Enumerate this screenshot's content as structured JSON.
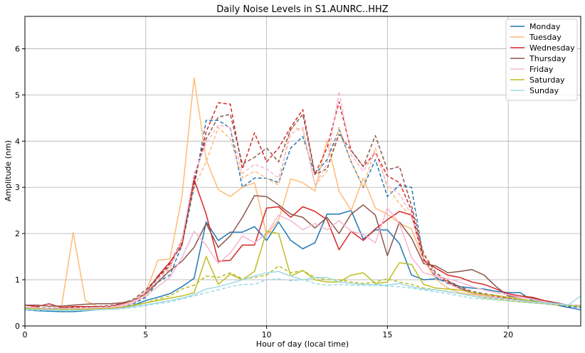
{
  "chart_data": {
    "type": "line",
    "title": "Daily Noise Levels in S1.AUNRC..HHZ",
    "xlabel": "Hour of day (local time)",
    "ylabel": "Amplitude (nm)",
    "xlim": [
      0,
      23
    ],
    "ylim": [
      0,
      6.7
    ],
    "xticks": [
      0,
      5,
      10,
      15,
      20
    ],
    "yticks": [
      0,
      1,
      2,
      3,
      4,
      5,
      6
    ],
    "grid": true,
    "legend_position": "top-right",
    "x": [
      0,
      0.5,
      1,
      1.5,
      2,
      2.5,
      3,
      3.5,
      4,
      4.5,
      5,
      5.5,
      6,
      6.5,
      7,
      7.5,
      8,
      8.5,
      9,
      9.5,
      10,
      10.5,
      11,
      11.5,
      12,
      12.5,
      13,
      13.5,
      14,
      14.5,
      15,
      15.5,
      16,
      16.5,
      17,
      17.5,
      18,
      18.5,
      19,
      19.5,
      20,
      20.5,
      21,
      21.5,
      22,
      22.5,
      23
    ],
    "series": [
      {
        "name": "Monday",
        "color": "#1f77b4",
        "style": "solid",
        "values": [
          0.35,
          0.33,
          0.32,
          0.31,
          0.31,
          0.33,
          0.35,
          0.37,
          0.4,
          0.45,
          0.55,
          0.62,
          0.7,
          0.85,
          1.03,
          2.25,
          1.85,
          2.03,
          2.03,
          2.15,
          1.85,
          2.25,
          1.85,
          1.67,
          1.8,
          2.42,
          2.42,
          2.5,
          1.88,
          2.08,
          2.08,
          1.78,
          1.1,
          1.0,
          1.02,
          0.96,
          0.85,
          0.82,
          0.8,
          0.75,
          0.72,
          0.72,
          0.55,
          0.5,
          0.45,
          0.4,
          0.35
        ]
      },
      {
        "name": "Monday (dashed)",
        "color": "#1f77b4",
        "style": "dashed",
        "legend": false,
        "values": [
          0.38,
          0.37,
          0.36,
          0.36,
          0.36,
          0.37,
          0.38,
          0.39,
          0.42,
          0.48,
          0.62,
          0.95,
          1.1,
          1.75,
          3.0,
          4.45,
          4.45,
          4.28,
          3.0,
          3.2,
          3.2,
          3.1,
          3.85,
          4.1,
          3.28,
          3.6,
          4.25,
          3.55,
          3.0,
          3.6,
          2.8,
          3.05,
          3.0,
          1.42,
          1.05,
          0.92,
          0.82,
          0.72,
          0.65,
          0.62,
          0.58,
          0.55,
          0.52,
          0.48,
          0.45,
          0.42,
          0.4
        ]
      },
      {
        "name": "Tuesday",
        "color": "#ffbb78",
        "style": "solid",
        "values": [
          0.4,
          0.38,
          0.37,
          0.37,
          2.02,
          0.55,
          0.42,
          0.42,
          0.45,
          0.55,
          0.72,
          1.42,
          1.45,
          2.8,
          5.37,
          3.6,
          2.95,
          2.8,
          3.0,
          3.1,
          1.97,
          2.3,
          3.18,
          3.1,
          2.92,
          4.02,
          2.92,
          2.5,
          3.2,
          2.55,
          2.42,
          2.22,
          2.1,
          1.42,
          1.02,
          0.82,
          0.72,
          0.68,
          0.65,
          0.6,
          0.58,
          0.55,
          0.5,
          0.48,
          0.45,
          0.45,
          0.45
        ]
      },
      {
        "name": "Tuesday (dashed)",
        "color": "#ffbb78",
        "style": "dashed",
        "legend": false,
        "values": [
          0.4,
          0.38,
          0.38,
          0.38,
          0.38,
          0.39,
          0.4,
          0.42,
          0.45,
          0.52,
          0.68,
          0.95,
          1.25,
          1.9,
          3.0,
          3.55,
          4.3,
          4.05,
          3.2,
          3.35,
          3.2,
          3.05,
          4.3,
          4.25,
          3.05,
          3.35,
          4.3,
          3.55,
          3.0,
          3.85,
          3.0,
          2.65,
          2.35,
          1.6,
          1.15,
          0.95,
          0.8,
          0.7,
          0.65,
          0.62,
          0.6,
          0.55,
          0.52,
          0.5,
          0.47,
          0.45,
          0.43
        ]
      },
      {
        "name": "Wednesday",
        "color": "#d62728",
        "style": "solid",
        "values": [
          0.45,
          0.42,
          0.48,
          0.4,
          0.42,
          0.42,
          0.42,
          0.42,
          0.48,
          0.55,
          0.72,
          1.08,
          1.38,
          1.75,
          3.17,
          2.42,
          1.4,
          1.42,
          1.75,
          1.75,
          2.55,
          2.58,
          2.35,
          2.58,
          2.48,
          2.3,
          1.65,
          2.05,
          1.85,
          2.1,
          2.3,
          2.48,
          2.4,
          1.42,
          1.25,
          1.1,
          1.05,
          0.95,
          0.9,
          0.8,
          0.7,
          0.65,
          0.62,
          0.55,
          0.5,
          0.45,
          0.43
        ]
      },
      {
        "name": "Wednesday (dashed)",
        "color": "#d62728",
        "style": "dashed",
        "legend": false,
        "values": [
          0.4,
          0.39,
          0.38,
          0.38,
          0.38,
          0.39,
          0.4,
          0.42,
          0.45,
          0.55,
          0.72,
          1.05,
          1.35,
          1.85,
          3.1,
          4.2,
          4.83,
          4.8,
          3.4,
          4.18,
          3.55,
          3.85,
          4.3,
          4.68,
          3.28,
          3.85,
          4.85,
          3.8,
          3.45,
          3.75,
          3.25,
          3.1,
          2.5,
          1.45,
          1.1,
          0.95,
          0.82,
          0.72,
          0.68,
          0.64,
          0.6,
          0.57,
          0.52,
          0.48,
          0.46,
          0.44,
          0.42
        ]
      },
      {
        "name": "Thursday",
        "color": "#8c564b",
        "style": "solid",
        "values": [
          0.45,
          0.45,
          0.43,
          0.43,
          0.45,
          0.47,
          0.48,
          0.48,
          0.5,
          0.55,
          0.7,
          0.95,
          1.2,
          1.4,
          1.7,
          2.22,
          1.7,
          1.95,
          2.35,
          2.82,
          2.8,
          2.62,
          2.42,
          2.35,
          2.12,
          2.35,
          2.0,
          2.42,
          2.62,
          2.4,
          1.52,
          2.25,
          1.9,
          1.35,
          1.3,
          1.15,
          1.18,
          1.22,
          1.1,
          0.85,
          0.65,
          0.62,
          0.6,
          0.52,
          0.5,
          0.45,
          0.43
        ]
      },
      {
        "name": "Thursday (dashed)",
        "color": "#8c564b",
        "style": "dashed",
        "legend": false,
        "values": [
          0.4,
          0.4,
          0.39,
          0.39,
          0.4,
          0.4,
          0.42,
          0.44,
          0.48,
          0.58,
          0.78,
          1.05,
          1.3,
          1.8,
          3.2,
          4.05,
          4.52,
          4.58,
          3.5,
          3.65,
          3.85,
          3.55,
          4.25,
          4.58,
          3.28,
          3.4,
          4.15,
          3.8,
          3.45,
          4.12,
          3.38,
          3.45,
          2.6,
          1.55,
          1.15,
          0.98,
          0.85,
          0.75,
          0.7,
          0.66,
          0.62,
          0.58,
          0.54,
          0.5,
          0.47,
          0.44,
          0.42
        ]
      },
      {
        "name": "Friday",
        "color": "#f7b6d2",
        "style": "solid",
        "values": [
          0.4,
          0.39,
          0.38,
          0.38,
          0.38,
          0.38,
          0.39,
          0.4,
          0.42,
          0.5,
          0.65,
          0.85,
          1.05,
          1.48,
          2.05,
          1.75,
          1.35,
          1.58,
          1.95,
          1.8,
          2.0,
          2.4,
          2.28,
          2.08,
          2.22,
          2.08,
          2.28,
          2.05,
          1.98,
          1.8,
          2.55,
          2.22,
          1.48,
          1.15,
          1.08,
          1.02,
          0.95,
          0.85,
          0.78,
          0.72,
          0.68,
          0.62,
          0.58,
          0.52,
          0.48,
          0.45,
          0.43
        ]
      },
      {
        "name": "Friday (dashed)",
        "color": "#f7b6d2",
        "style": "dashed",
        "legend": false,
        "values": [
          0.4,
          0.39,
          0.38,
          0.38,
          0.38,
          0.39,
          0.4,
          0.42,
          0.45,
          0.55,
          0.72,
          1.0,
          1.28,
          1.85,
          3.3,
          3.95,
          4.35,
          4.3,
          3.3,
          3.5,
          3.4,
          3.2,
          4.15,
          4.3,
          3.05,
          3.5,
          5.08,
          3.7,
          3.35,
          3.75,
          3.05,
          2.85,
          2.4,
          1.4,
          1.1,
          0.92,
          0.8,
          0.7,
          0.66,
          0.62,
          0.58,
          0.55,
          0.52,
          0.48,
          0.46,
          0.44,
          0.42
        ]
      },
      {
        "name": "Saturday",
        "color": "#bcbd22",
        "style": "solid",
        "values": [
          0.38,
          0.37,
          0.36,
          0.36,
          0.36,
          0.36,
          0.37,
          0.38,
          0.4,
          0.45,
          0.5,
          0.55,
          0.6,
          0.65,
          0.72,
          1.5,
          0.9,
          1.12,
          1.0,
          1.18,
          2.05,
          2.0,
          1.08,
          1.2,
          1.0,
          0.95,
          0.95,
          1.1,
          1.15,
          0.92,
          0.95,
          1.37,
          1.33,
          0.9,
          0.82,
          0.8,
          0.78,
          0.72,
          0.68,
          0.66,
          0.62,
          0.58,
          0.54,
          0.5,
          0.47,
          0.45,
          0.43
        ]
      },
      {
        "name": "Saturday (dashed)",
        "color": "#bcbd22",
        "style": "dashed",
        "legend": false,
        "values": [
          0.36,
          0.35,
          0.34,
          0.34,
          0.34,
          0.35,
          0.36,
          0.37,
          0.39,
          0.44,
          0.5,
          0.58,
          0.65,
          0.8,
          0.88,
          1.08,
          1.05,
          1.15,
          1.02,
          1.05,
          1.1,
          1.3,
          1.15,
          1.2,
          1.05,
          1.0,
          1.0,
          0.95,
          0.92,
          0.95,
          1.02,
          0.95,
          0.9,
          0.82,
          0.78,
          0.75,
          0.7,
          0.65,
          0.6,
          0.58,
          0.55,
          0.52,
          0.5,
          0.48,
          0.46,
          0.44,
          0.42
        ]
      },
      {
        "name": "Sunday",
        "color": "#9edae5",
        "style": "solid",
        "values": [
          0.36,
          0.35,
          0.35,
          0.34,
          0.34,
          0.34,
          0.35,
          0.36,
          0.38,
          0.42,
          0.46,
          0.5,
          0.55,
          0.6,
          0.68,
          0.8,
          0.85,
          0.92,
          1.0,
          1.08,
          1.15,
          1.18,
          1.08,
          1.0,
          1.05,
          1.05,
          0.95,
          0.92,
          0.9,
          0.9,
          0.88,
          0.92,
          0.85,
          0.8,
          0.78,
          0.74,
          0.7,
          0.65,
          0.62,
          0.6,
          0.58,
          0.55,
          0.52,
          0.5,
          0.48,
          0.46,
          0.65
        ]
      },
      {
        "name": "Sunday (dashed)",
        "color": "#9edae5",
        "style": "dashed",
        "legend": false,
        "values": [
          0.35,
          0.34,
          0.34,
          0.33,
          0.33,
          0.34,
          0.35,
          0.36,
          0.37,
          0.4,
          0.44,
          0.48,
          0.52,
          0.58,
          0.65,
          0.72,
          0.78,
          0.85,
          0.9,
          0.9,
          1.0,
          1.02,
          0.98,
          1.0,
          0.92,
          0.88,
          0.9,
          0.88,
          0.88,
          0.88,
          0.86,
          0.85,
          0.82,
          0.78,
          0.74,
          0.7,
          0.65,
          0.6,
          0.58,
          0.56,
          0.54,
          0.52,
          0.5,
          0.48,
          0.46,
          0.45,
          0.44
        ]
      }
    ]
  }
}
